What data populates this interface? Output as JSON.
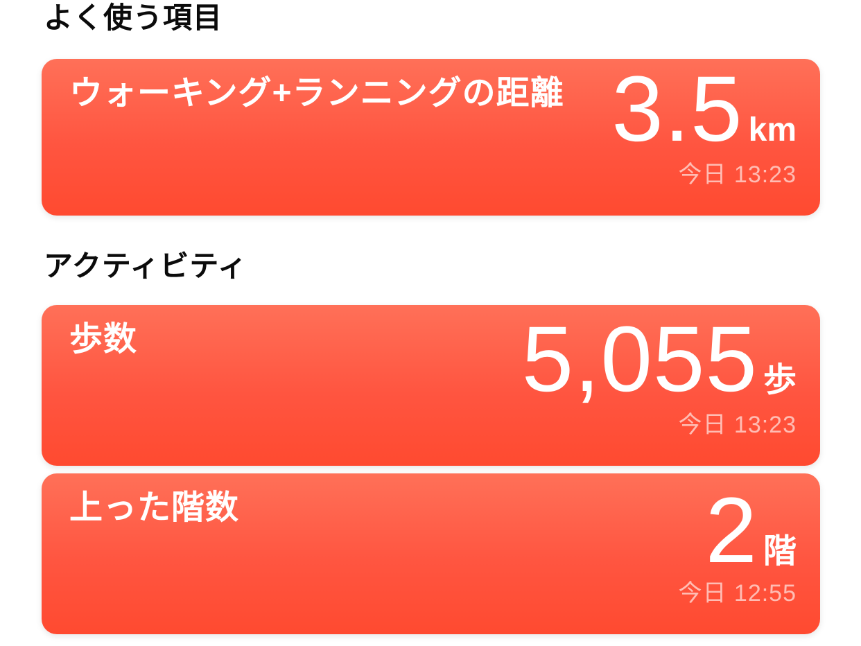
{
  "colors": {
    "page_bg": "#ffffff",
    "card_gradient_top": "#ff7058",
    "card_gradient_mid": "#ff5540",
    "card_gradient_bottom": "#ff4a30",
    "card_text": "#ffffff",
    "timestamp_text": "rgba(255,255,255,0.62)",
    "header_text": "#0b0b0b"
  },
  "sections": [
    {
      "title": "よく使う項目",
      "cards": [
        {
          "label": "ウォーキング+ランニングの距離",
          "value": "3.5",
          "unit": "km",
          "timestamp": "今日 13:23"
        }
      ]
    },
    {
      "title": "アクティビティ",
      "cards": [
        {
          "label": "歩数",
          "value": "5,055",
          "unit": "歩",
          "timestamp": "今日 13:23"
        },
        {
          "label": "上った階数",
          "value": "2",
          "unit": "階",
          "timestamp": "今日 12:55"
        }
      ]
    }
  ]
}
